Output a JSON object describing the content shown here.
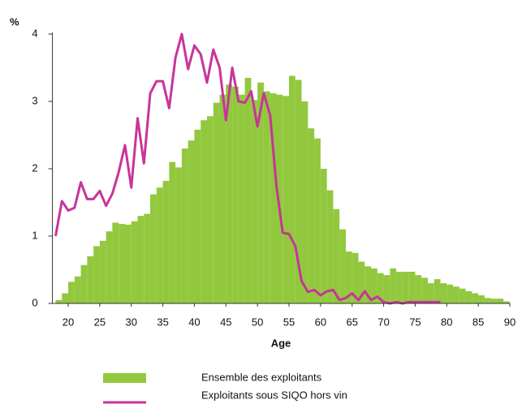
{
  "chart_data": {
    "type": "histogram",
    "ylabel": "%",
    "xlabel": "Age",
    "xlim": [
      17.5,
      90
    ],
    "xticks": [
      20,
      25,
      30,
      35,
      40,
      45,
      50,
      55,
      60,
      65,
      70,
      75,
      80,
      85,
      90
    ],
    "ylim": [
      0,
      4
    ],
    "yticks": [
      0,
      1,
      2,
      3,
      4
    ],
    "series": [
      {
        "name": "Ensemble des exploitants",
        "type": "histogram",
        "color": "#92c83e",
        "bins": [
          18,
          19,
          20,
          21,
          22,
          23,
          24,
          25,
          26,
          27,
          28,
          29,
          30,
          31,
          32,
          33,
          34,
          35,
          36,
          37,
          38,
          39,
          40,
          41,
          42,
          43,
          44,
          45,
          46,
          47,
          48,
          49,
          50,
          51,
          52,
          53,
          54,
          55,
          56,
          57,
          58,
          59,
          60,
          61,
          62,
          63,
          64,
          65,
          66,
          67,
          68,
          69,
          70,
          71,
          72,
          73,
          74,
          75,
          76,
          77,
          78,
          79,
          80,
          81,
          82,
          83,
          84,
          85,
          86,
          87,
          88,
          89,
          90
        ],
        "values": [
          0.05,
          0.15,
          0.32,
          0.4,
          0.57,
          0.7,
          0.85,
          0.93,
          1.07,
          1.2,
          1.18,
          1.17,
          1.22,
          1.3,
          1.33,
          1.62,
          1.72,
          1.82,
          2.1,
          2.02,
          2.3,
          2.42,
          2.58,
          2.72,
          2.78,
          2.98,
          3.1,
          3.25,
          3.22,
          3.1,
          3.35,
          3.02,
          3.28,
          3.15,
          3.12,
          3.1,
          3.08,
          3.38,
          3.32,
          3.0,
          2.6,
          2.45,
          2.0,
          1.68,
          1.4,
          1.1,
          0.77,
          0.75,
          0.62,
          0.55,
          0.52,
          0.45,
          0.42,
          0.52,
          0.47,
          0.47,
          0.47,
          0.42,
          0.38,
          0.3,
          0.36,
          0.3,
          0.28,
          0.25,
          0.22,
          0.18,
          0.15,
          0.12,
          0.08,
          0.07,
          0.07,
          0.03
        ]
      },
      {
        "name": "Exploitants sous SIQO hors vin",
        "type": "line",
        "color": "#c8349a",
        "x": [
          18,
          19,
          20,
          21,
          22,
          23,
          24,
          25,
          26,
          27,
          28,
          29,
          30,
          31,
          32,
          33,
          34,
          35,
          36,
          37,
          38,
          39,
          40,
          41,
          42,
          43,
          44,
          45,
          46,
          47,
          48,
          49,
          50,
          51,
          52,
          53,
          54,
          55,
          56,
          57,
          58,
          59,
          60,
          61,
          62,
          63,
          64,
          65,
          66,
          67,
          68,
          69,
          70,
          71,
          72,
          73,
          74,
          75,
          76,
          77,
          78,
          79
        ],
        "values": [
          1.0,
          1.52,
          1.38,
          1.42,
          1.8,
          1.55,
          1.55,
          1.67,
          1.45,
          1.63,
          1.95,
          2.35,
          1.72,
          2.75,
          2.08,
          3.12,
          3.3,
          3.3,
          2.9,
          3.65,
          4.0,
          3.48,
          3.83,
          3.7,
          3.28,
          3.77,
          3.5,
          2.72,
          3.5,
          3.0,
          2.98,
          3.15,
          2.63,
          3.12,
          2.8,
          1.75,
          1.05,
          1.03,
          0.85,
          0.33,
          0.17,
          0.2,
          0.12,
          0.18,
          0.2,
          0.05,
          0.08,
          0.15,
          0.05,
          0.18,
          0.05,
          0.1,
          0.02,
          0.0,
          0.02,
          0.0,
          0.02,
          0.02,
          0.02,
          0.02,
          0.02,
          0.02
        ]
      }
    ]
  }
}
